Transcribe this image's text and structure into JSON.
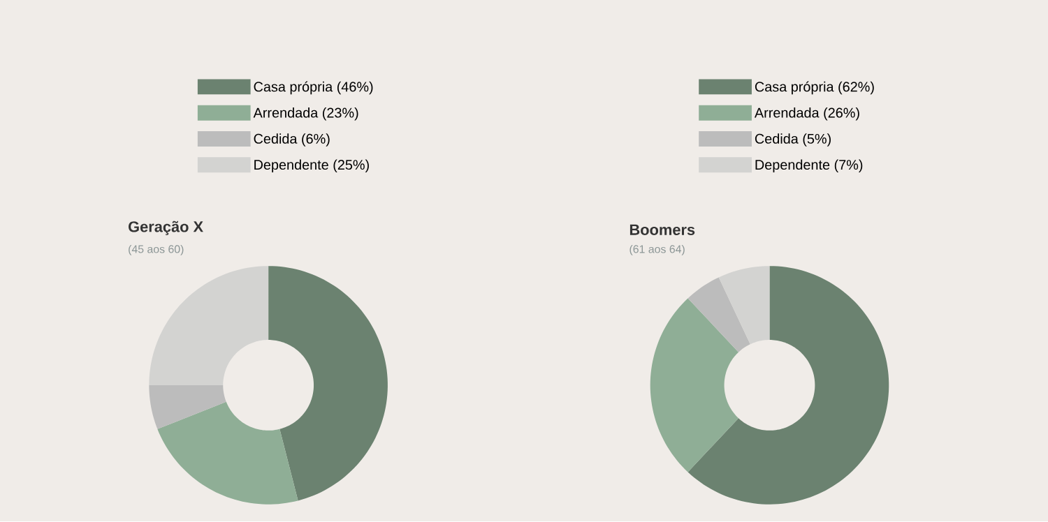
{
  "chart_data": [
    {
      "type": "donut",
      "title": "Geração X",
      "subtitle": "(45 aos 60)",
      "categories": [
        "Casa própria (46%)",
        "Arrendada (23%)",
        "Cedida (6%)",
        "Dependente (25%)"
      ],
      "values": [
        46,
        23,
        6,
        25
      ],
      "colors": [
        "#6b8270",
        "#8fae96",
        "#bcbcbc",
        "#d3d3d1"
      ],
      "legend": "top"
    },
    {
      "type": "donut",
      "title": "Boomers",
      "subtitle": "(61 aos 64)",
      "categories": [
        "Casa própria (62%)",
        "Arrendada (26%)",
        "Cedida (5%)",
        "Dependente (7%)"
      ],
      "values": [
        62,
        26,
        5,
        7
      ],
      "colors": [
        "#6b8270",
        "#8fae96",
        "#bcbcbc",
        "#d3d3d1"
      ],
      "legend": "top"
    }
  ]
}
